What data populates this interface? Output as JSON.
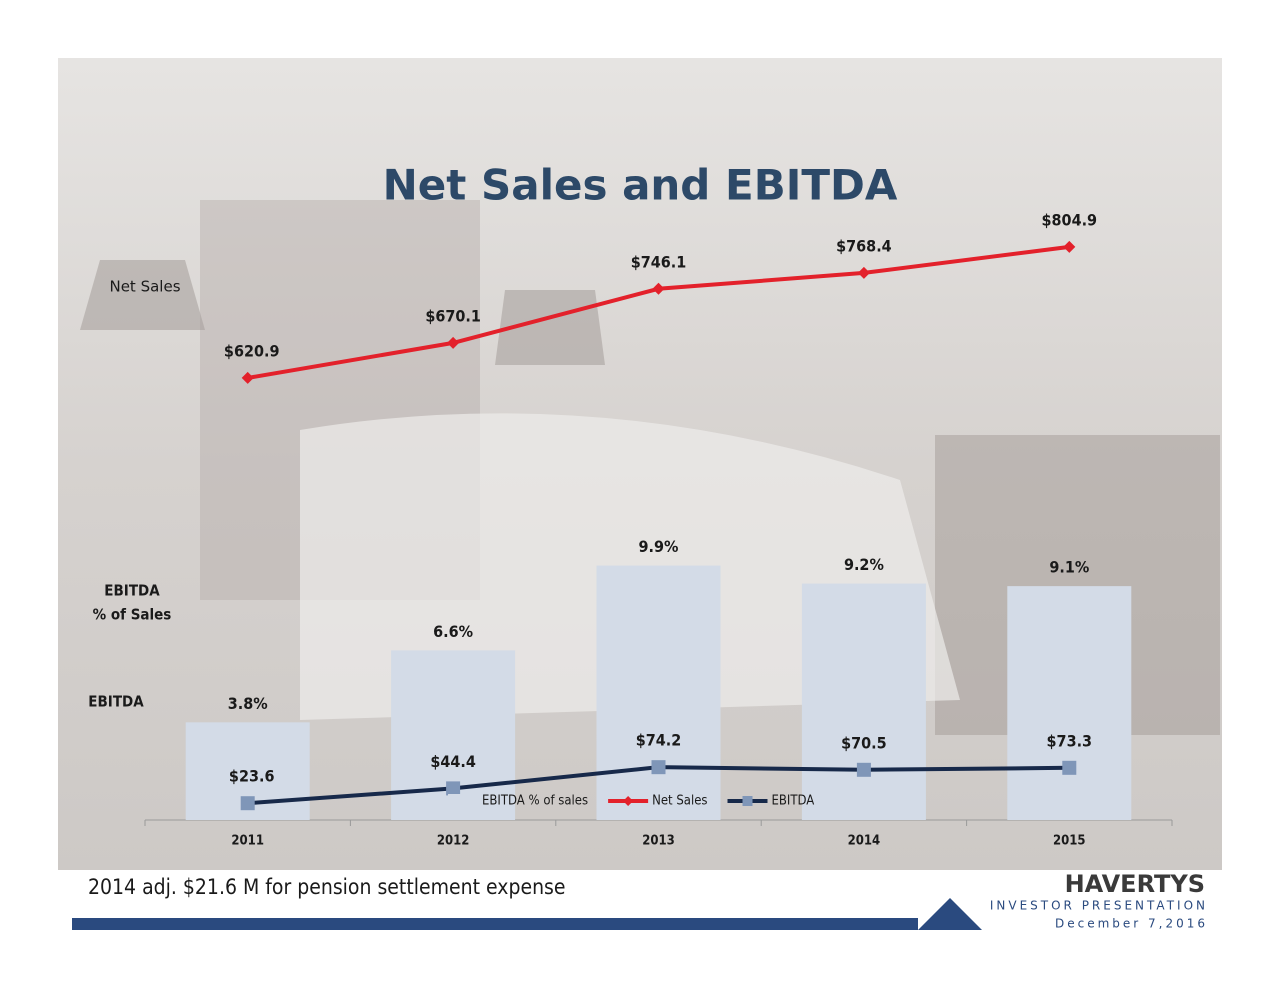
{
  "chart_data": {
    "type": "combo",
    "title": "Net Sales and EBITDA",
    "categories": [
      "2011",
      "2012",
      "2013",
      "2014",
      "2015"
    ],
    "row_labels": {
      "net_sales": "Net Sales",
      "ebitda_pct": [
        "EBITDA",
        "% of Sales"
      ],
      "ebitda": "EBITDA"
    },
    "legend": "bottom-center",
    "series": [
      {
        "name": "EBITDA % of sales",
        "type": "bar",
        "color": "#d3dbe7",
        "values": [
          3.8,
          6.6,
          9.9,
          9.2,
          9.1
        ],
        "value_labels": [
          "3.8%",
          "6.6%",
          "9.9%",
          "9.2%",
          "9.1%"
        ]
      },
      {
        "name": "Net Sales",
        "type": "line",
        "color": "#e3212b",
        "marker": "diamond",
        "values": [
          620.9,
          670.1,
          746.1,
          768.4,
          804.9
        ],
        "value_labels": [
          "$620.9",
          "$670.1",
          "$746.1",
          "$768.4",
          "$804.9"
        ]
      },
      {
        "name": "EBITDA",
        "type": "line",
        "color": "#17294a",
        "marker_color": "#7f96b8",
        "marker": "square",
        "values": [
          23.6,
          44.4,
          74.2,
          70.5,
          73.3
        ],
        "value_labels": [
          "$23.6",
          "$44.4",
          "$74.2",
          "$70.5",
          "$73.3"
        ]
      }
    ]
  },
  "footer": {
    "note": "2014 adj. $21.6 M for pension  settlement expense",
    "logo": "HAVERTYS",
    "subtitle": "INVESTOR PRESENTATION",
    "date": "December 7,2016"
  }
}
